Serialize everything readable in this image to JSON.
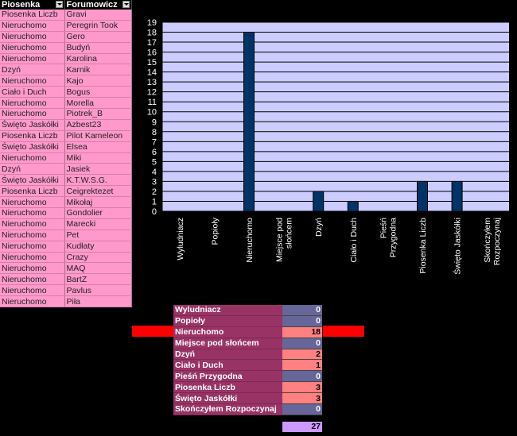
{
  "list": {
    "headers": [
      "Piosenka",
      "Forumowicz"
    ],
    "rows": [
      [
        "Piosenka Liczb",
        "Gravi"
      ],
      [
        "Nieruchomo",
        "Peregrin Took"
      ],
      [
        "Nieruchomo",
        "Gero"
      ],
      [
        "Nieruchomo",
        "Budyń"
      ],
      [
        "Nieruchomo",
        "Karolina"
      ],
      [
        "Dzyń",
        "Karnik"
      ],
      [
        "Nieruchomo",
        "Kajo"
      ],
      [
        "Ciało i Duch",
        "Bogus"
      ],
      [
        "Nieruchomo",
        "Morella"
      ],
      [
        "Nieruchomo",
        "Piotrek_B"
      ],
      [
        "Święto Jaskółki",
        "Azbest23"
      ],
      [
        "Piosenka Liczb",
        "Pilot Kameleon"
      ],
      [
        "Święto Jaskółki",
        "Elsea"
      ],
      [
        "Nieruchomo",
        "Miki"
      ],
      [
        "Dzyń",
        "Jasiek"
      ],
      [
        "Święto Jaskółki",
        "K.T.W.S.G."
      ],
      [
        "Piosenka Liczb",
        "Ceigrektezet"
      ],
      [
        "Nieruchomo",
        "Mikołaj"
      ],
      [
        "Nieruchomo",
        "Gondolier"
      ],
      [
        "Nieruchomo",
        "Marecki"
      ],
      [
        "Nieruchomo",
        "Pet"
      ],
      [
        "Nieruchomo",
        "Kudłaty"
      ],
      [
        "Nieruchomo",
        "Crazy"
      ],
      [
        "Nieruchomo",
        "MAQ"
      ],
      [
        "Nieruchomo",
        "BartZ"
      ],
      [
        "Nieruchomo",
        "Pavlus"
      ],
      [
        "Nieruchomo",
        "Piła"
      ]
    ]
  },
  "chart_data": {
    "type": "bar",
    "categories": [
      [
        "Wyludniacz"
      ],
      [
        "Popioły"
      ],
      [
        "Nieruchomo"
      ],
      [
        "Miejsce pod",
        "słońcem"
      ],
      [
        "Dzyń"
      ],
      [
        "Ciało i Duch"
      ],
      [
        "Pieśń",
        "Przygodna"
      ],
      [
        "Piosenka Liczb"
      ],
      [
        "Święto Jaskółki"
      ],
      [
        "Skończyłem",
        "Rozpoczynaj"
      ]
    ],
    "values": [
      0,
      0,
      18,
      0,
      2,
      1,
      0,
      3,
      3,
      0
    ],
    "ylim": [
      0,
      19
    ],
    "yticks": [
      0,
      1,
      2,
      3,
      4,
      5,
      6,
      7,
      8,
      9,
      10,
      11,
      12,
      13,
      14,
      15,
      16,
      17,
      18,
      19
    ],
    "grid": true,
    "colors": {
      "plot_bg": "#ccccff",
      "bar": "#003366",
      "grid": "#000000"
    }
  },
  "summary": {
    "rows": [
      {
        "label": "Wyludniacz",
        "value": 0
      },
      {
        "label": "Popioły",
        "value": 0
      },
      {
        "label": "Nieruchomo",
        "value": 18
      },
      {
        "label": "Miejsce pod słońcem",
        "value": 0
      },
      {
        "label": "Dzyń",
        "value": 2
      },
      {
        "label": "Ciało i Duch",
        "value": 1
      },
      {
        "label": "Pieśń Przygodna",
        "value": 0
      },
      {
        "label": "Piosenka Liczb",
        "value": 3
      },
      {
        "label": "Święto Jaskółki",
        "value": 3
      },
      {
        "label": "Skończyłem Rozpoczynaj",
        "value": 0
      }
    ],
    "total": 27,
    "highlight_colors": {
      "label_bg": "#993366",
      "zero_bg": "#666699",
      "nonzero_bg": "#ff8080",
      "marker": "#ff0000",
      "total_bg": "#cc99ff"
    }
  }
}
